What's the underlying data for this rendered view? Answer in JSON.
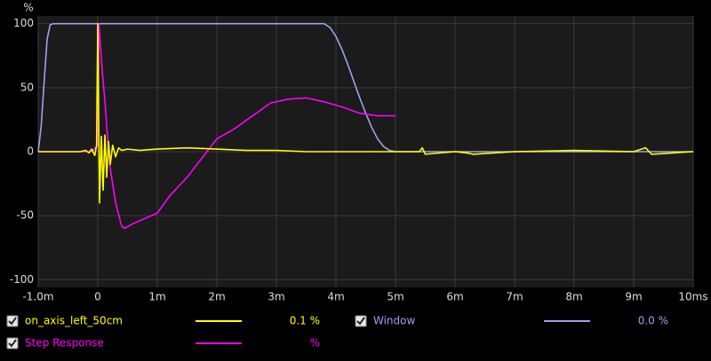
{
  "chart_data": {
    "type": "line",
    "y_label": "%",
    "xlim": [
      -1,
      10
    ],
    "ylim": [
      -106,
      106
    ],
    "xticks": [
      {
        "value": -1,
        "label": "-1.0m"
      },
      0,
      {
        "value": 1,
        "label": "1m"
      },
      {
        "value": 2,
        "label": "2m"
      },
      {
        "value": 3,
        "label": "3m"
      },
      {
        "value": 4,
        "label": "4m"
      },
      {
        "value": 5,
        "label": "5m"
      },
      {
        "value": 6,
        "label": "6m"
      },
      {
        "value": 7,
        "label": "7m"
      },
      {
        "value": 8,
        "label": "8m"
      },
      {
        "value": 9,
        "label": "9m"
      },
      {
        "value": 10,
        "label": "10ms"
      }
    ],
    "yticks": [
      100,
      50,
      0,
      -50,
      -100
    ],
    "grid": true,
    "series": [
      {
        "name": "on_axis_left_50cm",
        "color": "#ffff00",
        "readout": "0.1 %",
        "x": [
          -1,
          -0.3,
          -0.2,
          -0.15,
          -0.1,
          -0.05,
          -0.02,
          0,
          0.03,
          0.06,
          0.09,
          0.12,
          0.15,
          0.18,
          0.21,
          0.25,
          0.3,
          0.35,
          0.4,
          0.5,
          0.7,
          1,
          1.5,
          2,
          2.5,
          3,
          3.5,
          4,
          5,
          5.4,
          5.45,
          5.5,
          6,
          6.2,
          6.3,
          7,
          8,
          9,
          9.2,
          9.3,
          10
        ],
        "values": [
          0,
          0,
          1,
          -1,
          2,
          -3,
          5,
          100,
          -40,
          12,
          -30,
          13,
          -20,
          8,
          -10,
          5,
          -4,
          3,
          1,
          2,
          1,
          2,
          3,
          2,
          1,
          1,
          0,
          0,
          0,
          0,
          3,
          -2,
          0,
          -1,
          -2,
          0,
          1,
          0,
          3,
          -2,
          0
        ]
      },
      {
        "name": "Window",
        "color": "#a0a0f0",
        "readout": "0.0 %",
        "x": [
          -1,
          -0.95,
          -0.9,
          -0.85,
          -0.8,
          -0.75,
          3.8,
          3.9,
          4.0,
          4.1,
          4.2,
          4.3,
          4.4,
          4.5,
          4.6,
          4.7,
          4.8,
          4.9,
          5.0,
          10
        ],
        "values": [
          0,
          20,
          55,
          88,
          99,
          100,
          100,
          97,
          90,
          80,
          68,
          55,
          42,
          30,
          19,
          10,
          4,
          1,
          0,
          0
        ]
      },
      {
        "name": "Step Response",
        "color": "#ff00ff",
        "readout": "%",
        "x": [
          -1,
          -0.1,
          0,
          0.02,
          0.08,
          0.12,
          0.15,
          0.2,
          0.3,
          0.4,
          0.45,
          0.6,
          0.8,
          1.0,
          1.2,
          1.5,
          1.8,
          2.0,
          2.3,
          2.6,
          2.9,
          3.2,
          3.5,
          3.8,
          4.1,
          4.4,
          4.7,
          5.0
        ],
        "values": [
          0,
          0,
          5,
          100,
          60,
          40,
          20,
          -10,
          -40,
          -58,
          -60,
          -56,
          -52,
          -48,
          -35,
          -20,
          -2,
          10,
          18,
          28,
          38,
          41,
          42,
          39,
          35,
          30,
          28,
          28
        ]
      }
    ]
  }
}
